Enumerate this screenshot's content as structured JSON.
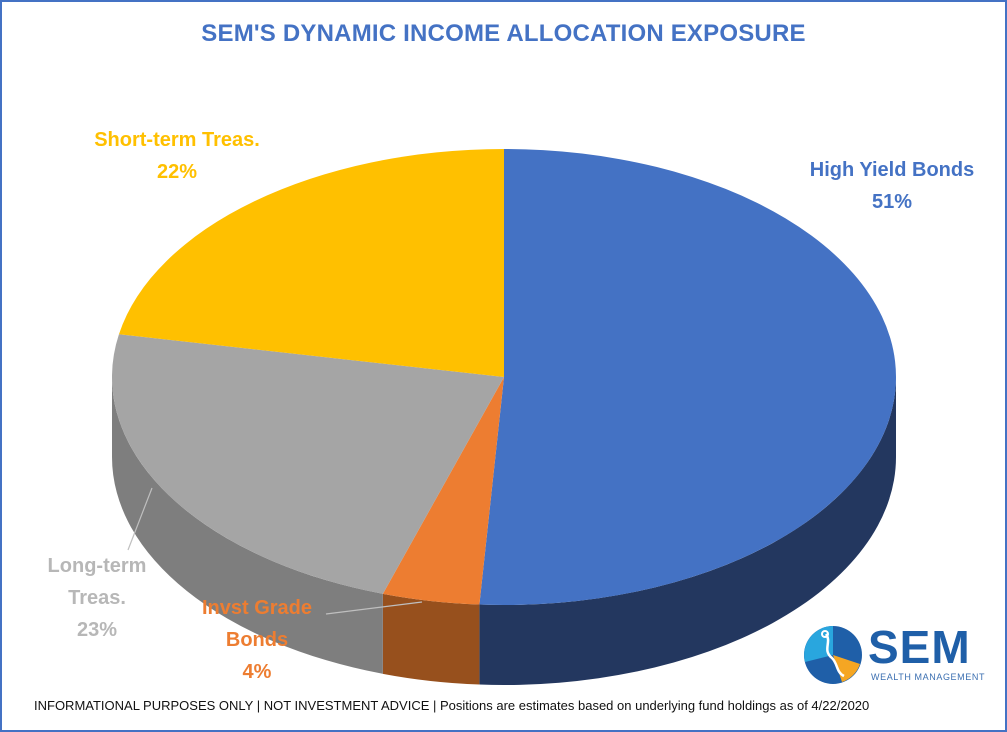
{
  "chart_data": {
    "type": "pie",
    "title": "SEM'S DYNAMIC INCOME ALLOCATION EXPOSURE",
    "slices": [
      {
        "label": "High Yield Bonds",
        "value": 51,
        "value_label": "51%",
        "color": "#4472c4",
        "side_color": "#23375f"
      },
      {
        "label": "Invst Grade Bonds",
        "value": 4,
        "value_label": "4%",
        "color": "#ed7d31",
        "side_color": "#97501d"
      },
      {
        "label": "Long-term Treas.",
        "value": 23,
        "value_label": "23%",
        "color": "#a5a5a5",
        "side_color": "#7e7e7e"
      },
      {
        "label": "Short-term Treas.",
        "value": 22,
        "value_label": "22%",
        "color": "#ffc000",
        "side_color": "#b38700"
      }
    ],
    "label_lines": {
      "high_yield": [
        "High Yield Bonds",
        "51%"
      ],
      "invst_grade": [
        "Invst Grade",
        "Bonds",
        "4%"
      ],
      "long_term": [
        "Long-term",
        "Treas.",
        "23%"
      ],
      "short_term": [
        "Short-term Treas.",
        "22%"
      ]
    }
  },
  "footnote": "INFORMATIONAL PURPOSES ONLY | NOT INVESTMENT ADVICE | Positions are estimates based on underlying fund holdings as of 4/22/2020",
  "logo": {
    "name": "SEM",
    "subtitle": "WEALTH MANAGEMENT",
    "icon": "sem-logo-icon",
    "colors": {
      "blue": "#1f5fa8",
      "light_blue": "#29a6de",
      "orange": "#f5a623"
    }
  }
}
